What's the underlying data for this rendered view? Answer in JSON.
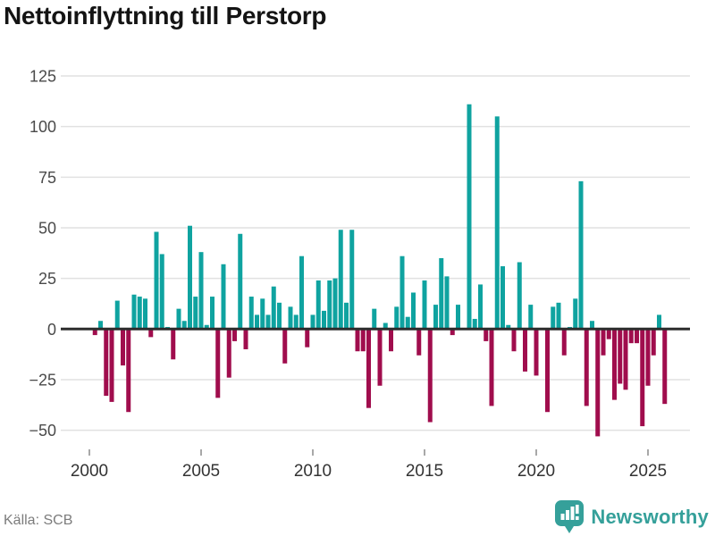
{
  "header": {
    "title": "Nettoinflyttning till Perstorp"
  },
  "footer": {
    "source": "Källa: SCB",
    "brand": "Newsworthy",
    "logo_icon": "newsworthy-speech-bubble-bar-chart-icon"
  },
  "chart_data": {
    "type": "bar",
    "title": "Nettoinflyttning till Perstorp",
    "frequency": "quarterly",
    "start_year": 2000,
    "start_quarter": 1,
    "values": [
      0,
      -3,
      4,
      -33,
      -36,
      14,
      -18,
      -41,
      17,
      16,
      15,
      -4,
      48,
      37,
      1,
      -15,
      10,
      4,
      51,
      16,
      38,
      2,
      16,
      -34,
      32,
      -24,
      -6,
      47,
      -10,
      16,
      7,
      15,
      7,
      21,
      13,
      -17,
      11,
      7,
      36,
      -9,
      7,
      24,
      9,
      24,
      25,
      49,
      13,
      49,
      -11,
      -11,
      -39,
      10,
      -28,
      3,
      -11,
      11,
      36,
      6,
      18,
      -13,
      24,
      -46,
      12,
      35,
      26,
      -3,
      12,
      0,
      111,
      5,
      22,
      -6,
      -38,
      105,
      31,
      2,
      -11,
      33,
      -21,
      12,
      -23,
      0,
      -41,
      11,
      13,
      -13,
      1,
      15,
      73,
      -38,
      4,
      -53,
      -13,
      -5,
      -35,
      -27,
      -30,
      -7,
      -7,
      -48,
      -28,
      -13,
      7,
      -37
    ],
    "y_axis": {
      "tick_values": [
        125,
        100,
        75,
        50,
        25,
        0,
        -25,
        -50
      ],
      "tick_labels": [
        "125",
        "100",
        "75",
        "50",
        "25",
        "0",
        "−25",
        "−50"
      ],
      "range": [
        -60,
        132
      ]
    },
    "x_axis": {
      "tick_years": [
        2000,
        2005,
        2010,
        2015,
        2020,
        2025
      ],
      "tick_labels": [
        "2000",
        "2005",
        "2010",
        "2015",
        "2020",
        "2025"
      ]
    },
    "grid": true,
    "legend": false,
    "colors": {
      "positive_bar": "#0fa3a0",
      "negative_bar": "#a00d4d",
      "zero_line": "#2d2d2d",
      "gridline": "#e1e1e1",
      "y_tick_text": "#4a4a4a",
      "x_tick_text": "#333333",
      "tick_mark": "#8a8a8a"
    }
  }
}
